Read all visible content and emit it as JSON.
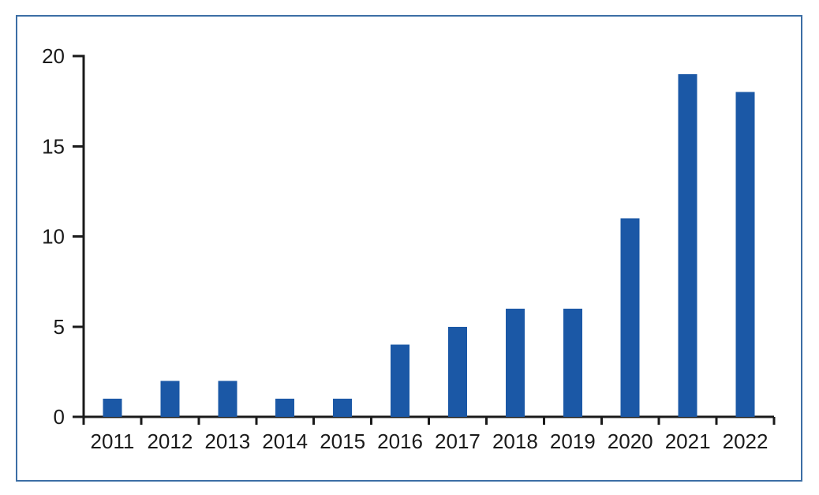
{
  "chart_data": {
    "type": "bar",
    "title": "",
    "xlabel": "",
    "ylabel": "",
    "categories": [
      "2011",
      "2012",
      "2013",
      "2014",
      "2015",
      "2016",
      "2017",
      "2018",
      "2019",
      "2020",
      "2021",
      "2022"
    ],
    "values": [
      1,
      2,
      2,
      1,
      1,
      4,
      5,
      6,
      6,
      11,
      19,
      18
    ],
    "ylim": [
      0,
      20
    ],
    "yticks": [
      0,
      5,
      10,
      15,
      20
    ],
    "grid": false,
    "legend": false,
    "colors": {
      "bar": "#1B58A6",
      "axis": "#1a1a1a",
      "tick_label": "#1a1a1a",
      "frame_border": "#3c6ea5",
      "background": "#ffffff"
    }
  }
}
